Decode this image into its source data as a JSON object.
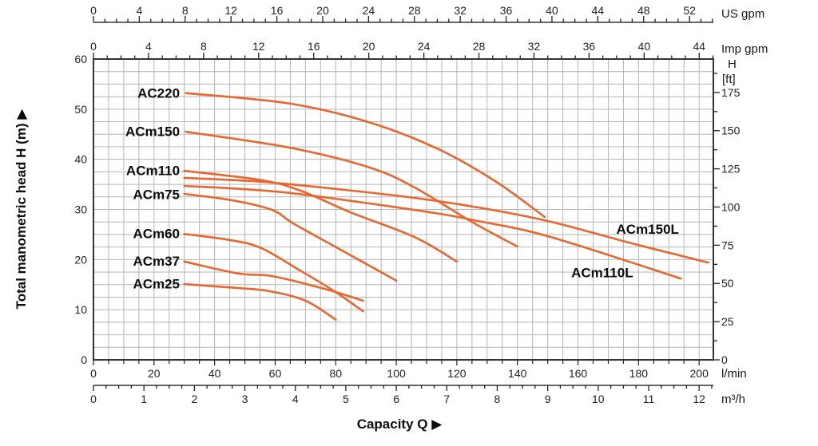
{
  "chart_data": {
    "type": "line",
    "title": "Capacity Q",
    "title_arrow": "▶",
    "curve_color": "#e7672e",
    "grid_color": "#b5b5b5",
    "border_color": "#333333",
    "y_axis": {
      "label": "Total manometric head H (m)",
      "arrow": "▶",
      "min": 0,
      "max": 60,
      "grid_step": 2.5,
      "labels": [
        0,
        10,
        20,
        30,
        40,
        50,
        60
      ]
    },
    "y_axis_ft": {
      "unit_line1": "H",
      "unit_line2": "[ft]",
      "m_per_ft": 0.3048,
      "minor_step": 12.5,
      "max_ft": 190,
      "labels": [
        0,
        25,
        50,
        75,
        100,
        125,
        150,
        175
      ]
    },
    "x_axis_lmin": {
      "unit": "l/min",
      "min": 0,
      "max": 204.7,
      "grid_step": 5,
      "tick_step": 5,
      "labels": [
        0,
        20,
        40,
        60,
        80,
        100,
        120,
        140,
        160,
        180,
        200
      ]
    },
    "x_axis_m3h": {
      "unit": "m³/h",
      "lmin_per_unit": 16.6667,
      "minor_step": 0.25,
      "max_units": 12.25,
      "labels": [
        0,
        1,
        2,
        3,
        4,
        5,
        6,
        7,
        8,
        9,
        10,
        11,
        12
      ]
    },
    "x_axis_us_gpm": {
      "unit": "US gpm",
      "lmin_per_unit": 3.785,
      "minor_step": 1,
      "max_units": 54,
      "label_step": 4,
      "labels": [
        0,
        4,
        8,
        12,
        16,
        20,
        24,
        28,
        32,
        36,
        40,
        44,
        48,
        52
      ]
    },
    "x_axis_imp_gpm": {
      "unit": "Imp gpm",
      "lmin_per_unit": 4.546,
      "minor_step": 1,
      "max_units": 45,
      "label_step": 4,
      "labels": [
        0,
        4,
        8,
        12,
        16,
        20,
        24,
        28,
        32,
        36,
        40,
        44
      ]
    },
    "series": [
      {
        "name": "AC220",
        "label_anchor": "end",
        "label_pos": [
          28.5,
          53.2
        ],
        "points": [
          [
            30.5,
            53.2
          ],
          [
            65,
            51.1
          ],
          [
            91,
            47.4
          ],
          [
            114,
            42.0
          ],
          [
            133,
            35.5
          ],
          [
            149,
            28.5
          ]
        ]
      },
      {
        "name": "ACm150",
        "label_anchor": "end",
        "label_pos": [
          28.5,
          45.6
        ],
        "points": [
          [
            30.5,
            45.5
          ],
          [
            65,
            42.3
          ],
          [
            91,
            38.4
          ],
          [
            106,
            34.4
          ],
          [
            125,
            27.5
          ],
          [
            140,
            22.6
          ]
        ]
      },
      {
        "name": "ACm110",
        "label_anchor": "end",
        "label_pos": [
          28.5,
          37.8
        ],
        "points": [
          [
            30,
            37.7
          ],
          [
            56,
            35.8
          ],
          [
            69,
            33.6
          ],
          [
            85,
            29.4
          ],
          [
            106,
            24.5
          ],
          [
            120,
            19.6
          ]
        ]
      },
      {
        "name": "ACm75",
        "label_anchor": "end",
        "label_pos": [
          28.5,
          33.0
        ],
        "points": [
          [
            30,
            33.1
          ],
          [
            46,
            31.8
          ],
          [
            59,
            29.9
          ],
          [
            66,
            27.2
          ],
          [
            83,
            21.5
          ],
          [
            100,
            15.8
          ]
        ]
      },
      {
        "name": "ACm60",
        "label_anchor": "end",
        "label_pos": [
          28.5,
          25.2
        ],
        "points": [
          [
            30,
            25.1
          ],
          [
            44,
            24.0
          ],
          [
            55,
            22.4
          ],
          [
            68,
            17.9
          ],
          [
            79,
            13.9
          ],
          [
            89,
            9.7
          ]
        ]
      },
      {
        "name": "ACm37",
        "label_anchor": "end",
        "label_pos": [
          28.5,
          19.7
        ],
        "points": [
          [
            30,
            19.6
          ],
          [
            48,
            17.2
          ],
          [
            59,
            16.7
          ],
          [
            76,
            14.2
          ],
          [
            89,
            11.8
          ]
        ]
      },
      {
        "name": "ACm25",
        "label_anchor": "end",
        "label_pos": [
          28.5,
          15.2
        ],
        "points": [
          [
            30,
            15.1
          ],
          [
            48,
            14.3
          ],
          [
            58,
            13.7
          ],
          [
            70,
            11.8
          ],
          [
            80,
            8.0
          ]
        ]
      },
      {
        "name": "ACm150L",
        "label_anchor": "middle",
        "label_pos": [
          183,
          26.1
        ],
        "points": [
          [
            30,
            36.3
          ],
          [
            56,
            35.5
          ],
          [
            83,
            33.9
          ],
          [
            106,
            32.3
          ],
          [
            127,
            30.4
          ],
          [
            150,
            27.7
          ],
          [
            178,
            23.2
          ],
          [
            203,
            19.4
          ]
        ]
      },
      {
        "name": "ACm110L",
        "label_anchor": "middle",
        "label_pos": [
          168,
          17.4
        ],
        "points": [
          [
            30,
            34.7
          ],
          [
            63,
            33.4
          ],
          [
            106,
            29.9
          ],
          [
            127,
            27.7
          ],
          [
            151,
            24.5
          ],
          [
            194,
            16.2
          ]
        ]
      }
    ]
  }
}
